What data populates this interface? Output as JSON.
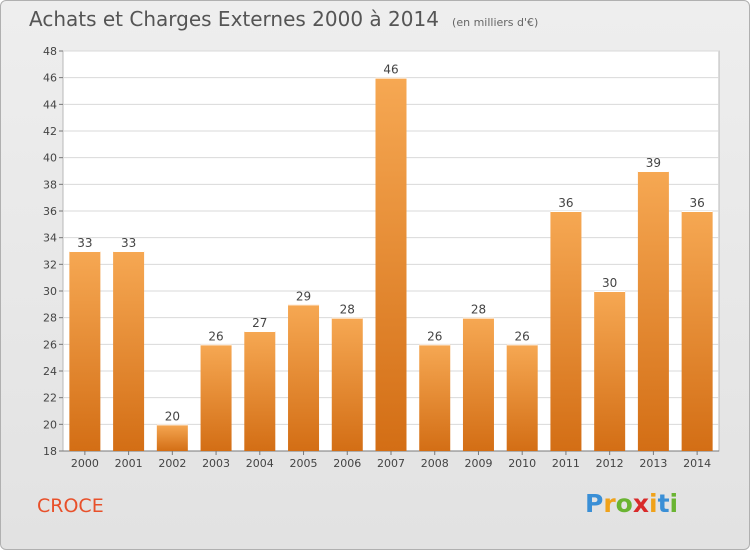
{
  "header": {
    "title": "Achats et Charges Externes 2000 à 2014",
    "subtitle": "(en milliers d'€)"
  },
  "footer": {
    "commune": "CROCE",
    "logo_text": "Proxiti",
    "logo_letters": [
      "P",
      "r",
      "o",
      "x",
      "i",
      "t",
      "i"
    ]
  },
  "colors": {
    "bar_light": "#f6a853",
    "bar_dark": "#d36e15",
    "commune_text": "#e8502a"
  },
  "chart_data": {
    "type": "bar",
    "title": "Achats et Charges Externes 2000 à 2014",
    "subtitle": "(en milliers d'€)",
    "xlabel": "",
    "ylabel": "",
    "categories": [
      "2000",
      "2001",
      "2002",
      "2003",
      "2004",
      "2005",
      "2006",
      "2007",
      "2008",
      "2009",
      "2010",
      "2011",
      "2012",
      "2013",
      "2014"
    ],
    "values": [
      33,
      33,
      20,
      26,
      27,
      29,
      28,
      46,
      26,
      28,
      26,
      36,
      30,
      39,
      36
    ],
    "ylim": [
      18,
      48
    ],
    "yticks": [
      18,
      20,
      22,
      24,
      26,
      28,
      30,
      32,
      34,
      36,
      38,
      40,
      42,
      44,
      46,
      48
    ],
    "grid": true,
    "data_labels": true
  }
}
